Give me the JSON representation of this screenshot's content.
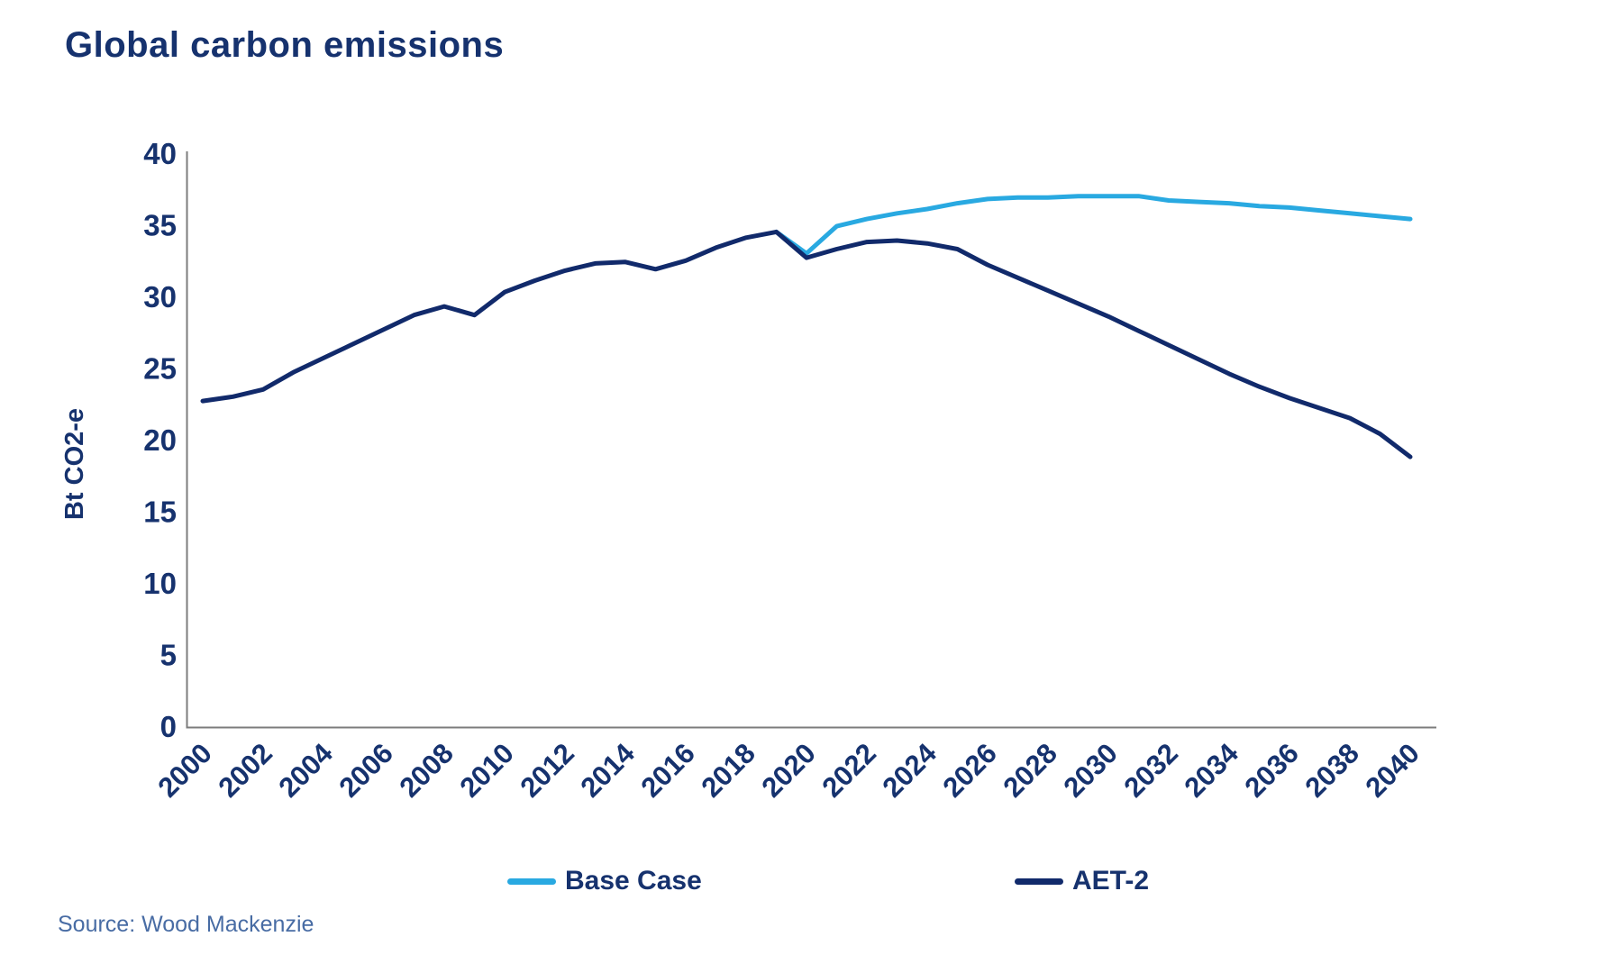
{
  "title": "Global carbon emissions",
  "source": "Source: Wood Mackenzie",
  "colors": {
    "title_text": "#16326E",
    "tick_text": "#16326E",
    "axis_line": "#7C7C7C",
    "base_case_line": "#29A9E1",
    "aet2_line": "#112A6B",
    "source_text": "#486CA4",
    "background": "#FFFFFF"
  },
  "chart_data": {
    "type": "line",
    "title": "Global carbon emissions",
    "xlabel": "",
    "ylabel": "Bt CO2-e",
    "ylim": [
      0,
      40
    ],
    "xlim": [
      2000,
      2040
    ],
    "grid": false,
    "legend_position": "bottom",
    "yticks": [
      0,
      5,
      10,
      15,
      20,
      25,
      30,
      35,
      40
    ],
    "xticks": [
      2000,
      2002,
      2004,
      2006,
      2008,
      2010,
      2012,
      2014,
      2016,
      2018,
      2020,
      2022,
      2024,
      2026,
      2028,
      2030,
      2032,
      2034,
      2036,
      2038,
      2040
    ],
    "series": [
      {
        "name": "Base Case",
        "color": "#29A9E1",
        "x": [
          2019,
          2020,
          2021,
          2022,
          2023,
          2024,
          2025,
          2026,
          2027,
          2028,
          2029,
          2030,
          2031,
          2032,
          2033,
          2034,
          2035,
          2036,
          2037,
          2038,
          2039,
          2040
        ],
        "values": [
          34.5,
          33.0,
          34.9,
          35.4,
          35.8,
          36.1,
          36.5,
          36.8,
          36.9,
          36.9,
          37.0,
          37.0,
          37.0,
          36.7,
          36.6,
          36.5,
          36.3,
          36.2,
          36.0,
          35.8,
          35.6,
          35.4
        ]
      },
      {
        "name": "AET-2",
        "color": "#112A6B",
        "x": [
          2000,
          2001,
          2002,
          2003,
          2004,
          2005,
          2006,
          2007,
          2008,
          2009,
          2010,
          2011,
          2012,
          2013,
          2014,
          2015,
          2016,
          2017,
          2018,
          2019,
          2020,
          2021,
          2022,
          2023,
          2024,
          2025,
          2026,
          2027,
          2028,
          2029,
          2030,
          2031,
          2032,
          2033,
          2034,
          2035,
          2036,
          2037,
          2038,
          2039,
          2040
        ],
        "values": [
          22.7,
          23.0,
          23.5,
          24.7,
          25.7,
          26.7,
          27.7,
          28.7,
          29.3,
          28.7,
          30.3,
          31.1,
          31.8,
          32.3,
          32.4,
          31.9,
          32.5,
          33.4,
          34.1,
          34.5,
          32.7,
          33.3,
          33.8,
          33.9,
          33.7,
          33.3,
          32.2,
          31.3,
          30.4,
          29.5,
          28.6,
          27.6,
          26.6,
          25.6,
          24.6,
          23.7,
          22.9,
          22.2,
          21.5,
          20.4,
          18.8
        ]
      }
    ]
  }
}
